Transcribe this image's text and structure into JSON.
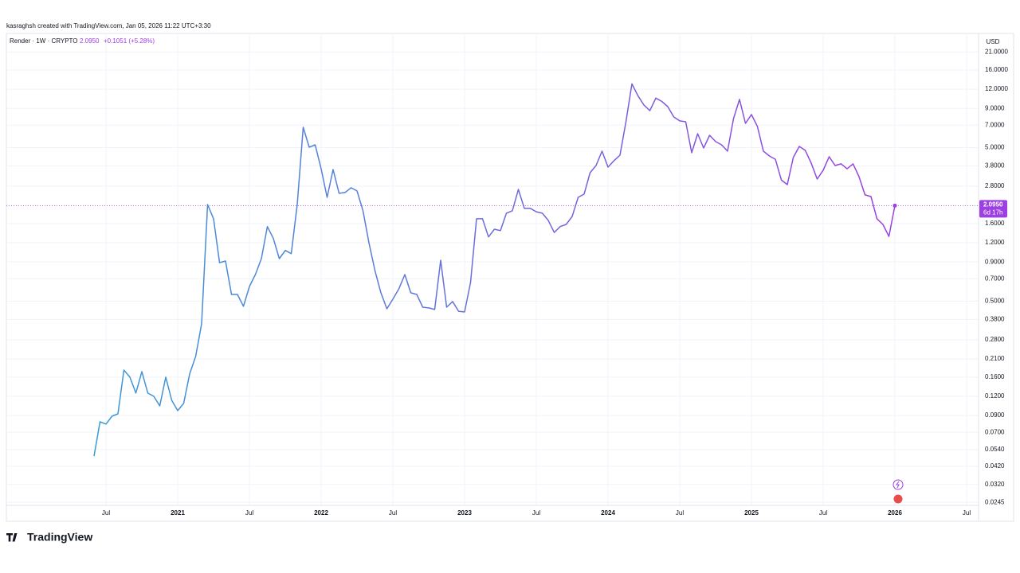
{
  "header": "kasraghsh created with TradingView.com, Jan 05, 2026 11:22 UTC+3:30",
  "logo": "TradingView",
  "chart_data": {
    "type": "line",
    "legend": {
      "symbol": "Render · 1W · CRYPTO",
      "last": "2.0950",
      "change": "+0.1051 (+5.28%)"
    },
    "currency": "USD",
    "log_scale": true,
    "grid": true,
    "last_price": {
      "value": 2.095,
      "label": "2.0950",
      "countdown": "6d 17h"
    },
    "categories": [
      null,
      null,
      "Jul",
      null,
      null,
      null,
      null,
      null,
      null,
      null,
      null,
      null,
      null,
      null,
      "2021",
      null,
      null,
      null,
      null,
      null,
      null,
      null,
      null,
      null,
      null,
      null,
      "Jul",
      null,
      null,
      null,
      null,
      null,
      null,
      null,
      null,
      null,
      null,
      null,
      "2022",
      null,
      null,
      null,
      null,
      null,
      null,
      null,
      null,
      null,
      null,
      null,
      "Jul",
      null,
      null,
      null,
      null,
      null,
      null,
      null,
      null,
      null,
      null,
      null,
      "2023",
      null,
      null,
      null,
      null,
      null,
      null,
      null,
      null,
      null,
      null,
      null,
      "Jul",
      null,
      null,
      null,
      null,
      null,
      null,
      null,
      null,
      null,
      null,
      null,
      "2024",
      null,
      null,
      null,
      null,
      null,
      null,
      null,
      null,
      null,
      null,
      null,
      "Jul",
      null,
      null,
      null,
      null,
      null,
      null,
      null,
      null,
      null,
      null,
      null,
      "2025",
      null,
      null,
      null,
      null,
      null,
      null,
      null,
      null,
      null,
      null,
      null,
      "Jul",
      null,
      null,
      null,
      null,
      null,
      null,
      null,
      null,
      null,
      null,
      null,
      "2026",
      null,
      null,
      null,
      null,
      null,
      null,
      null,
      null,
      null,
      null,
      null,
      "Jul"
    ],
    "series": [
      {
        "name": "Render",
        "gradient": [
          "#3a9ad5",
          "#9c3fe3"
        ],
        "values": [
          0.049,
          0.0819,
          0.0791,
          0.0891,
          0.0923,
          0.178,
          0.16,
          0.126,
          0.174,
          0.126,
          0.12,
          0.104,
          0.16,
          0.113,
          0.0968,
          0.108,
          0.168,
          0.218,
          0.356,
          2.13,
          1.72,
          0.891,
          0.913,
          0.553,
          0.553,
          0.463,
          0.623,
          0.745,
          0.946,
          1.53,
          1.28,
          0.946,
          1.07,
          1.02,
          2.13,
          6.78,
          5.03,
          5.21,
          3.64,
          2.37,
          3.6,
          2.52,
          2.55,
          2.74,
          2.61,
          1.94,
          1.2,
          0.791,
          0.567,
          0.446,
          0.515,
          0.601,
          0.745,
          0.567,
          0.553,
          0.457,
          0.452,
          0.441,
          0.924,
          0.457,
          0.497,
          0.43,
          0.425,
          0.662,
          1.72,
          1.72,
          1.31,
          1.47,
          1.44,
          1.87,
          1.94,
          2.67,
          2.01,
          2.01,
          1.91,
          1.87,
          1.68,
          1.4,
          1.53,
          1.58,
          1.78,
          2.37,
          2.49,
          3.43,
          3.82,
          4.74,
          3.73,
          4.11,
          4.46,
          7.37,
          13.0,
          10.9,
          9.47,
          8.71,
          10.5,
          10.0,
          9.24,
          7.92,
          7.46,
          7.37,
          4.63,
          6.16,
          4.97,
          6.01,
          5.47,
          5.21,
          4.74,
          7.73,
          10.3,
          7.19,
          8.21,
          6.86,
          4.74,
          4.41,
          4.2,
          3.08,
          2.87,
          4.31,
          5.09,
          4.8,
          3.96,
          3.12,
          3.56,
          4.36,
          3.82,
          3.92,
          3.64,
          3.92,
          3.23,
          2.46,
          2.4,
          1.72,
          1.58,
          1.32,
          2.095,
          null,
          null,
          null,
          null,
          null,
          null,
          null,
          null,
          null,
          null,
          null,
          null
        ]
      }
    ],
    "ylim": [
      0.0234,
      27.7
    ],
    "yticks": [
      {
        "value": 21,
        "label": "21.0000"
      },
      {
        "value": 16,
        "label": "16.0000"
      },
      {
        "value": 12,
        "label": "12.0000"
      },
      {
        "value": 9,
        "label": "9.0000"
      },
      {
        "value": 7,
        "label": "7.0000"
      },
      {
        "value": 5,
        "label": "5.0000"
      },
      {
        "value": 3.8,
        "label": "3.8000"
      },
      {
        "value": 2.8,
        "label": "2.8000"
      },
      {
        "value": 1.6,
        "label": "1.6000"
      },
      {
        "value": 1.2,
        "label": "1.2000"
      },
      {
        "value": 0.9,
        "label": "0.9000"
      },
      {
        "value": 0.7,
        "label": "0.7000"
      },
      {
        "value": 0.5,
        "label": "0.5000"
      },
      {
        "value": 0.38,
        "label": "0.3800"
      },
      {
        "value": 0.28,
        "label": "0.2800"
      },
      {
        "value": 0.21,
        "label": "0.2100"
      },
      {
        "value": 0.16,
        "label": "0.1600"
      },
      {
        "value": 0.12,
        "label": "0.1200"
      },
      {
        "value": 0.09,
        "label": "0.0900"
      },
      {
        "value": 0.07,
        "label": "0.0700"
      },
      {
        "value": 0.054,
        "label": "0.0540"
      },
      {
        "value": 0.042,
        "label": "0.0420"
      },
      {
        "value": 0.032,
        "label": "0.0320"
      },
      {
        "value": 0.0245,
        "label": "0.0245"
      }
    ]
  }
}
